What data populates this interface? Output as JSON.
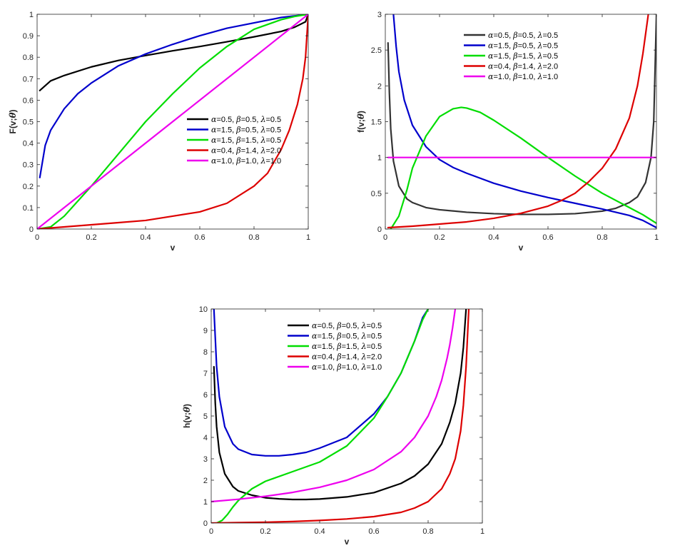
{
  "chart_data": [
    {
      "id": "F",
      "type": "line",
      "xlabel": "v",
      "ylabel": "F(v;θ)",
      "xlim": [
        0,
        1
      ],
      "ylim": [
        0,
        1
      ],
      "xticks": [
        0,
        0.2,
        0.4,
        0.6,
        0.8,
        1
      ],
      "xtick_labels": [
        "0",
        "0.2",
        "0.4",
        "0.6",
        "0.8",
        "1"
      ],
      "yticks": [
        0,
        0.1,
        0.2,
        0.3,
        0.4,
        0.5,
        0.6,
        0.7,
        0.8,
        0.9,
        1
      ],
      "ytick_labels": [
        "0",
        "0.1",
        "0.2",
        "0.3",
        "0.4",
        "0.5",
        "0.6",
        "0.7",
        "0.8",
        "0.9",
        "1"
      ],
      "grid": false,
      "legend_position": "center-right",
      "series": [
        {
          "name": "α=0.5, β=0.5, λ=0.5",
          "color": "#000000",
          "x": [
            0.01,
            0.05,
            0.1,
            0.2,
            0.3,
            0.4,
            0.5,
            0.6,
            0.7,
            0.8,
            0.9,
            0.95,
            0.99,
            1.0
          ],
          "y": [
            0.645,
            0.69,
            0.715,
            0.755,
            0.785,
            0.808,
            0.83,
            0.85,
            0.872,
            0.895,
            0.92,
            0.94,
            0.965,
            1.0
          ]
        },
        {
          "name": "α=1.5, β=0.5, λ=0.5",
          "color": "#0000cc",
          "x": [
            0.01,
            0.03,
            0.05,
            0.1,
            0.15,
            0.2,
            0.3,
            0.4,
            0.5,
            0.6,
            0.7,
            0.8,
            0.9,
            1.0
          ],
          "y": [
            0.24,
            0.39,
            0.46,
            0.56,
            0.63,
            0.68,
            0.76,
            0.815,
            0.86,
            0.9,
            0.935,
            0.96,
            0.985,
            1.0
          ]
        },
        {
          "name": "α=1.5, β=1.5, λ=0.5",
          "color": "#00dd00",
          "x": [
            0.0,
            0.05,
            0.1,
            0.15,
            0.2,
            0.3,
            0.4,
            0.5,
            0.6,
            0.7,
            0.8,
            0.9,
            0.95,
            1.0
          ],
          "y": [
            0.0,
            0.01,
            0.06,
            0.13,
            0.2,
            0.35,
            0.5,
            0.63,
            0.75,
            0.85,
            0.93,
            0.975,
            0.99,
            1.0
          ]
        },
        {
          "name": "α=0.4, β=1.4, λ=2.0",
          "color": "#dd0000",
          "x": [
            0.0,
            0.1,
            0.2,
            0.3,
            0.4,
            0.5,
            0.6,
            0.7,
            0.8,
            0.85,
            0.9,
            0.93,
            0.96,
            0.98,
            0.99,
            1.0
          ],
          "y": [
            0.0,
            0.01,
            0.02,
            0.03,
            0.04,
            0.06,
            0.08,
            0.12,
            0.2,
            0.26,
            0.37,
            0.46,
            0.58,
            0.7,
            0.8,
            1.0
          ]
        },
        {
          "name": "α=1.0, β=1.0, λ=1.0",
          "color": "#ee00ee",
          "x": [
            0.0,
            1.0
          ],
          "y": [
            0.0,
            1.0
          ]
        }
      ]
    },
    {
      "id": "f",
      "type": "line",
      "xlabel": "v",
      "ylabel": "f(v;θ)",
      "xlim": [
        0,
        1
      ],
      "ylim": [
        0,
        3
      ],
      "xticks": [
        0,
        0.2,
        0.4,
        0.6,
        0.8,
        1
      ],
      "xtick_labels": [
        "0",
        "0.2",
        "0.4",
        "0.6",
        "0.8",
        "1"
      ],
      "yticks": [
        0,
        0.5,
        1,
        1.5,
        2,
        2.5,
        3
      ],
      "ytick_labels": [
        "0",
        "0.5",
        "1",
        "1.5",
        "2",
        "2.5",
        "3"
      ],
      "grid": false,
      "legend_position": "top-right",
      "series": [
        {
          "name": "α=0.5, β=0.5, λ=0.5",
          "color": "#333333",
          "x": [
            0.01,
            0.015,
            0.02,
            0.03,
            0.05,
            0.08,
            0.1,
            0.15,
            0.2,
            0.3,
            0.4,
            0.5,
            0.6,
            0.7,
            0.8,
            0.85,
            0.9,
            0.93,
            0.96,
            0.98,
            0.99,
            1.0
          ],
          "y": [
            2.6,
            1.9,
            1.4,
            0.95,
            0.6,
            0.42,
            0.37,
            0.3,
            0.27,
            0.235,
            0.215,
            0.205,
            0.205,
            0.215,
            0.25,
            0.29,
            0.37,
            0.45,
            0.65,
            1.0,
            1.5,
            3.0
          ]
        },
        {
          "name": "α=1.5, β=0.5, λ=0.5",
          "color": "#0000cc",
          "x": [
            0.03,
            0.04,
            0.05,
            0.07,
            0.1,
            0.15,
            0.2,
            0.25,
            0.3,
            0.4,
            0.5,
            0.6,
            0.7,
            0.8,
            0.9,
            0.95,
            1.0
          ],
          "y": [
            3.0,
            2.55,
            2.2,
            1.8,
            1.45,
            1.15,
            0.97,
            0.86,
            0.78,
            0.64,
            0.53,
            0.44,
            0.36,
            0.28,
            0.19,
            0.12,
            0.02
          ]
        },
        {
          "name": "α=1.5, β=1.5, λ=0.5",
          "color": "#00dd00",
          "x": [
            0.02,
            0.05,
            0.08,
            0.1,
            0.15,
            0.2,
            0.25,
            0.28,
            0.3,
            0.35,
            0.4,
            0.5,
            0.6,
            0.7,
            0.8,
            0.9,
            0.95,
            1.0
          ],
          "y": [
            0.0,
            0.18,
            0.55,
            0.85,
            1.3,
            1.57,
            1.68,
            1.7,
            1.69,
            1.63,
            1.52,
            1.27,
            1.0,
            0.74,
            0.5,
            0.3,
            0.2,
            0.08
          ]
        },
        {
          "name": "α=0.4, β=1.4, λ=2.0",
          "color": "#dd0000",
          "x": [
            0.01,
            0.1,
            0.2,
            0.3,
            0.4,
            0.5,
            0.6,
            0.65,
            0.7,
            0.75,
            0.8,
            0.85,
            0.9,
            0.93,
            0.95,
            0.97
          ],
          "y": [
            0.02,
            0.04,
            0.07,
            0.1,
            0.15,
            0.22,
            0.32,
            0.4,
            0.5,
            0.66,
            0.85,
            1.12,
            1.55,
            2.0,
            2.45,
            3.0
          ]
        },
        {
          "name": "α=1.0, β=1.0, λ=1.0",
          "color": "#ee00ee",
          "x": [
            0.01,
            1.0
          ],
          "y": [
            1.0,
            1.0
          ]
        }
      ]
    },
    {
      "id": "h",
      "type": "line",
      "xlabel": "v",
      "ylabel": "h(v;θ)",
      "xlim": [
        0,
        1
      ],
      "ylim": [
        0,
        10
      ],
      "xticks": [
        0,
        0.2,
        0.4,
        0.6,
        0.8,
        1
      ],
      "xtick_labels": [
        "0",
        "0.2",
        "0.4",
        "0.6",
        "0.8",
        "1"
      ],
      "yticks": [
        0,
        1,
        2,
        3,
        4,
        5,
        6,
        7,
        8,
        9,
        10
      ],
      "ytick_labels": [
        "0",
        "1",
        "2",
        "3",
        "4",
        "5",
        "6",
        "7",
        "8",
        "9",
        "10"
      ],
      "grid": false,
      "legend_position": "top-center",
      "series": [
        {
          "name": "α=0.5, β=0.5, λ=0.5",
          "color": "#000000",
          "x": [
            0.01,
            0.015,
            0.02,
            0.03,
            0.05,
            0.08,
            0.1,
            0.15,
            0.2,
            0.25,
            0.3,
            0.35,
            0.4,
            0.5,
            0.6,
            0.7,
            0.75,
            0.8,
            0.85,
            0.88,
            0.9,
            0.92,
            0.93,
            0.94
          ],
          "y": [
            7.3,
            5.6,
            4.5,
            3.3,
            2.3,
            1.7,
            1.5,
            1.3,
            1.18,
            1.13,
            1.1,
            1.1,
            1.12,
            1.22,
            1.42,
            1.85,
            2.2,
            2.75,
            3.7,
            4.7,
            5.6,
            7.0,
            8.2,
            10.0
          ]
        },
        {
          "name": "α=1.5, β=0.5, λ=0.5",
          "color": "#0000cc",
          "x": [
            0.01,
            0.02,
            0.03,
            0.05,
            0.08,
            0.1,
            0.15,
            0.2,
            0.25,
            0.3,
            0.35,
            0.4,
            0.5,
            0.6,
            0.65,
            0.7,
            0.75,
            0.78,
            0.8
          ],
          "y": [
            10.0,
            7.3,
            5.9,
            4.5,
            3.7,
            3.45,
            3.2,
            3.14,
            3.14,
            3.2,
            3.3,
            3.5,
            4.0,
            5.1,
            5.9,
            7.0,
            8.5,
            9.6,
            10.0
          ]
        },
        {
          "name": "α=1.5, β=1.5, λ=0.5",
          "color": "#00dd00",
          "x": [
            0.02,
            0.04,
            0.06,
            0.08,
            0.1,
            0.15,
            0.2,
            0.3,
            0.4,
            0.5,
            0.6,
            0.65,
            0.7,
            0.75,
            0.78,
            0.8
          ],
          "y": [
            0.0,
            0.12,
            0.4,
            0.75,
            1.05,
            1.6,
            1.95,
            2.4,
            2.85,
            3.6,
            4.9,
            5.9,
            7.0,
            8.5,
            9.5,
            10.0
          ]
        },
        {
          "name": "α=0.4, β=1.4, λ=2.0",
          "color": "#dd0000",
          "x": [
            0.0,
            0.1,
            0.2,
            0.3,
            0.4,
            0.5,
            0.6,
            0.7,
            0.75,
            0.8,
            0.85,
            0.88,
            0.9,
            0.92,
            0.93,
            0.94,
            0.95
          ],
          "y": [
            0.0,
            0.02,
            0.04,
            0.07,
            0.12,
            0.19,
            0.3,
            0.5,
            0.7,
            1.0,
            1.6,
            2.3,
            3.0,
            4.3,
            5.5,
            7.3,
            10.0
          ]
        },
        {
          "name": "α=1.0, β=1.0, λ=1.0",
          "color": "#ee00ee",
          "x": [
            0.0,
            0.1,
            0.2,
            0.3,
            0.4,
            0.5,
            0.6,
            0.7,
            0.75,
            0.8,
            0.83,
            0.85,
            0.87,
            0.88,
            0.89,
            0.9
          ],
          "y": [
            1.0,
            1.11,
            1.25,
            1.43,
            1.67,
            2.0,
            2.5,
            3.33,
            4.0,
            5.0,
            5.9,
            6.67,
            7.7,
            8.33,
            9.1,
            10.0
          ]
        }
      ]
    }
  ]
}
